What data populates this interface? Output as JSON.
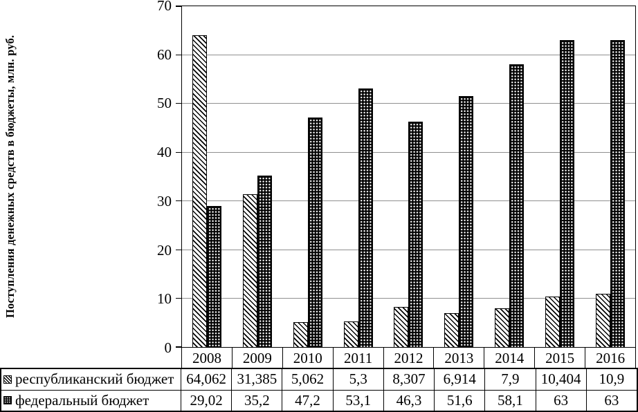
{
  "chart_data": {
    "type": "bar",
    "title": "",
    "xlabel": "",
    "ylabel": "Поступления денежных средств в бюджеты, млн. руб.",
    "ylim": [
      0,
      70
    ],
    "yticks": [
      0,
      10,
      20,
      30,
      40,
      50,
      60,
      70
    ],
    "grid": "horizontal",
    "legend_position": "table-below",
    "categories": [
      "2008",
      "2009",
      "2010",
      "2011",
      "2012",
      "2013",
      "2014",
      "2015",
      "2016"
    ],
    "series": [
      {
        "name": "республиканский бюджет",
        "pattern": "diagonal-hatch",
        "fill": "#ffffff",
        "stroke": "#000000",
        "values": [
          64.062,
          31.385,
          5.062,
          5.3,
          8.307,
          6.914,
          7.9,
          10.404,
          10.9
        ]
      },
      {
        "name": "федеральный бюджет",
        "pattern": "dot-grid",
        "fill": "#050505",
        "stroke": "#000000",
        "values": [
          29.02,
          35.2,
          47.2,
          53.1,
          46.3,
          51.6,
          58.1,
          63,
          63
        ]
      }
    ]
  },
  "table": {
    "rows": [
      {
        "marker": "diagonal-hatch-swatch",
        "label": "республиканский бюджет",
        "values": [
          "64,062",
          "31,385",
          "5,062",
          "5,3",
          "8,307",
          "6,914",
          "7,9",
          "10,404",
          "10,9"
        ]
      },
      {
        "marker": "dot-grid-swatch",
        "label": "федеральный бюджет",
        "values": [
          "29,02",
          "35,2",
          "47,2",
          "53,1",
          "46,3",
          "51,6",
          "58,1",
          "63",
          "63"
        ]
      }
    ]
  },
  "colors": {
    "gridline": "#8f8f8f",
    "axis": "#000000",
    "background": "#ffffff",
    "text": "#000000"
  }
}
